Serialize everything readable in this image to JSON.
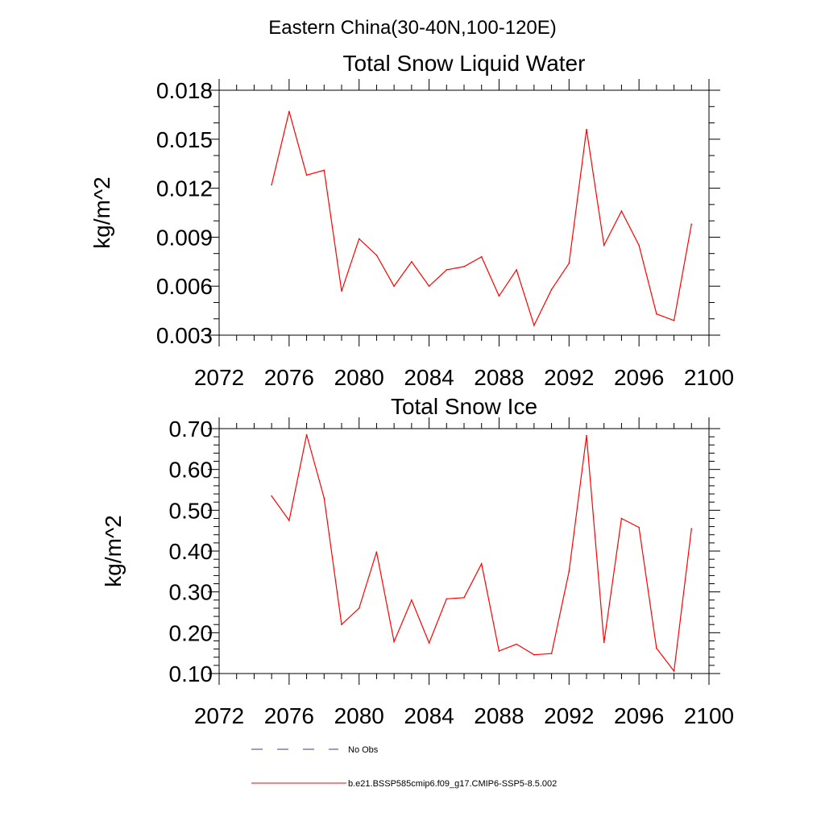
{
  "figure": {
    "suptitle": "Eastern China(30-40N,100-120E)"
  },
  "legend": {
    "entries": [
      {
        "label": "No Obs",
        "style": "dashed",
        "color": "#3a3a8c"
      },
      {
        "label": "b.e21.BSSP585cmip6.f09_g17.CMIP6-SSP5-8.5.002",
        "style": "solid",
        "color": "#ff0000"
      }
    ]
  },
  "chart_data": [
    {
      "type": "line",
      "title": "Total Snow Liquid Water",
      "xlabel": "",
      "ylabel": "kg/m^2",
      "xlim": [
        2072,
        2100
      ],
      "ylim": [
        0.003,
        0.018
      ],
      "xticks": [
        2072,
        2076,
        2080,
        2084,
        2088,
        2092,
        2096,
        2100
      ],
      "xtick_labels": [
        "2072",
        "2076",
        "2080",
        "2084",
        "2088",
        "2092",
        "2096",
        "2100"
      ],
      "yticks": [
        0.003,
        0.006,
        0.009,
        0.012,
        0.015,
        0.018
      ],
      "ytick_labels": [
        "0.003",
        "0.006",
        "0.009",
        "0.012",
        "0.015",
        "0.018"
      ],
      "grid": false,
      "series": [
        {
          "name": "b.e21.BSSP585cmip6.f09_g17.CMIP6-SSP5-8.5.002",
          "color": "#ff0000",
          "x": [
            2075,
            2076,
            2077,
            2078,
            2079,
            2080,
            2081,
            2082,
            2083,
            2084,
            2085,
            2086,
            2087,
            2088,
            2089,
            2090,
            2091,
            2092,
            2093,
            2094,
            2095,
            2096,
            2097,
            2098,
            2099
          ],
          "y": [
            0.0122,
            0.0167,
            0.0128,
            0.0131,
            0.0057,
            0.0089,
            0.0079,
            0.006,
            0.0075,
            0.006,
            0.007,
            0.0072,
            0.0078,
            0.0054,
            0.007,
            0.0036,
            0.0058,
            0.0074,
            0.0156,
            0.0085,
            0.0106,
            0.0085,
            0.0043,
            0.0039,
            0.0098
          ]
        }
      ]
    },
    {
      "type": "line",
      "title": "Total Snow Ice",
      "xlabel": "",
      "ylabel": "kg/m^2",
      "xlim": [
        2072,
        2100
      ],
      "ylim": [
        0.1,
        0.7
      ],
      "xticks": [
        2072,
        2076,
        2080,
        2084,
        2088,
        2092,
        2096,
        2100
      ],
      "xtick_labels": [
        "2072",
        "2076",
        "2080",
        "2084",
        "2088",
        "2092",
        "2096",
        "2100"
      ],
      "yticks": [
        0.1,
        0.2,
        0.3,
        0.4,
        0.5,
        0.6,
        0.7
      ],
      "ytick_labels": [
        "0.10",
        "0.20",
        "0.30",
        "0.40",
        "0.50",
        "0.60",
        "0.70"
      ],
      "grid": false,
      "series": [
        {
          "name": "b.e21.BSSP585cmip6.f09_g17.CMIP6-SSP5-8.5.002",
          "color": "#ff0000",
          "x": [
            2075,
            2076,
            2077,
            2078,
            2079,
            2080,
            2081,
            2082,
            2083,
            2084,
            2085,
            2086,
            2087,
            2088,
            2089,
            2090,
            2091,
            2092,
            2093,
            2094,
            2095,
            2096,
            2097,
            2098,
            2099
          ],
          "y": [
            0.535,
            0.475,
            0.685,
            0.53,
            0.22,
            0.26,
            0.398,
            0.178,
            0.28,
            0.175,
            0.283,
            0.286,
            0.369,
            0.155,
            0.172,
            0.146,
            0.149,
            0.35,
            0.683,
            0.176,
            0.48,
            0.458,
            0.162,
            0.106,
            0.455
          ]
        }
      ]
    }
  ]
}
